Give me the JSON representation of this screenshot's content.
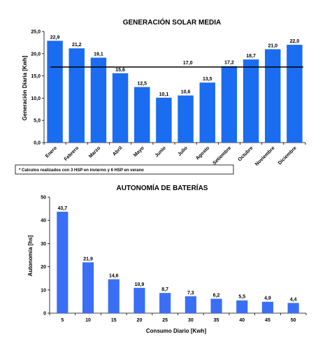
{
  "chart_data": [
    {
      "type": "bar",
      "title": "GENERACIÓN SOLAR MEDIA",
      "xlabel": "",
      "ylabel": "Generación Diaria [Kwh]",
      "categories": [
        "Enero",
        "Febrero",
        "Marzo",
        "Abril",
        "Mayo",
        "Junio",
        "Julio",
        "Agosto",
        "Setiembre",
        "Octubre",
        "Noviembre",
        "Diciembre"
      ],
      "values": [
        22.9,
        21.2,
        19.1,
        15.6,
        12.5,
        10.1,
        10.6,
        13.5,
        17.2,
        18.7,
        21.0,
        22.0
      ],
      "value_labels": [
        "22,9",
        "21,2",
        "19,1",
        "15,6",
        "12,5",
        "10,1",
        "10,6",
        "13,5",
        "17,2",
        "18,7",
        "21,0",
        "22,0"
      ],
      "ylim": [
        0,
        25
      ],
      "yticks": [
        0,
        5,
        10,
        15,
        20,
        25
      ],
      "ytick_labels": [
        "0,0",
        "5,0",
        "10,0",
        "15,0",
        "20,0",
        "25,0"
      ],
      "reference_line": {
        "value": 17.0,
        "label": "17,0"
      },
      "note": "*  Calculos realizados con 3 HSP en invierno y 6 HSP en verano",
      "bar_color": "#1a6cf0",
      "grid": false
    },
    {
      "type": "bar",
      "title": "AUTONOMÍA DE BATERÍAS",
      "xlabel": "Consumo Diario [Kwh]",
      "ylabel": "Autonomía [hs]",
      "categories": [
        "5",
        "10",
        "15",
        "20",
        "25",
        "30",
        "35",
        "40",
        "45",
        "50"
      ],
      "values": [
        43.7,
        21.9,
        14.6,
        10.9,
        8.7,
        7.3,
        6.2,
        5.5,
        4.9,
        4.4
      ],
      "value_labels": [
        "43,7",
        "21,9",
        "14,6",
        "10,9",
        "8,7",
        "7,3",
        "6,2",
        "5,5",
        "4,9",
        "4,4"
      ],
      "ylim": [
        0,
        50
      ],
      "yticks": [
        0,
        10,
        20,
        30,
        40,
        50
      ],
      "ytick_labels": [
        "0",
        "10",
        "20",
        "30",
        "40",
        "50"
      ],
      "bar_color": "#3a6ff5",
      "grid": false
    }
  ]
}
